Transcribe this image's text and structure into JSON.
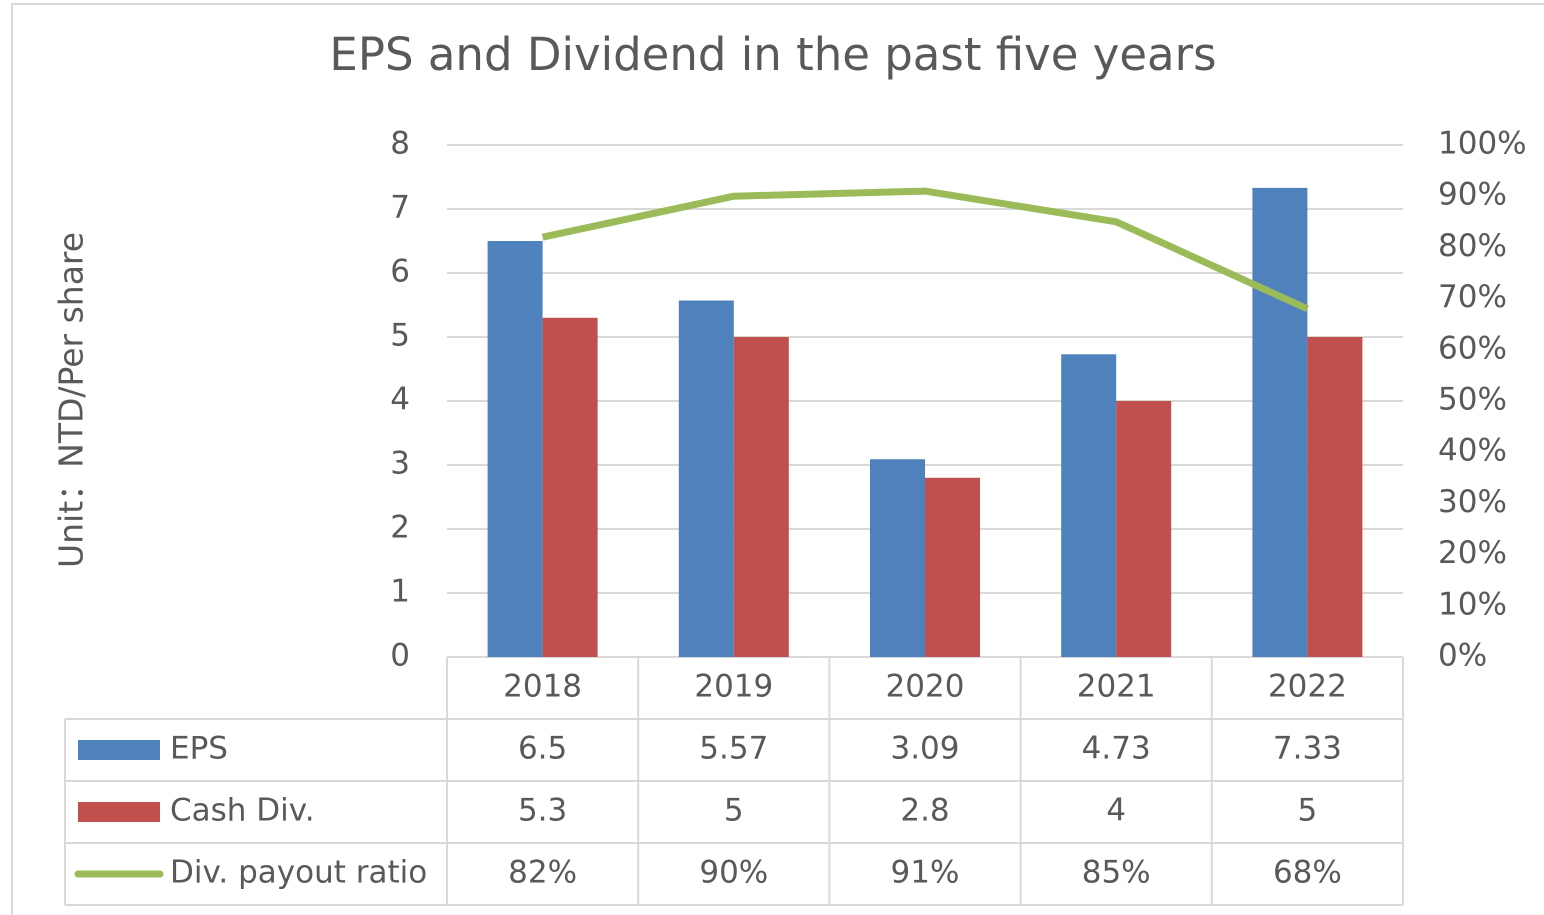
{
  "chart_data": {
    "type": "bar",
    "title": "EPS and Dividend in the past five years",
    "y_label": "Unit：NTD/Per share",
    "categories": [
      "2018",
      "2019",
      "2020",
      "2021",
      "2022"
    ],
    "series": [
      {
        "name": "EPS",
        "color": "#4f81bd",
        "type": "bar",
        "values": [
          6.5,
          5.57,
          3.09,
          4.73,
          7.33
        ]
      },
      {
        "name": "Cash Div.",
        "color": "#c0504d",
        "type": "bar",
        "values": [
          5.3,
          5,
          2.8,
          4,
          5
        ]
      },
      {
        "name": "Div. payout ratio",
        "color": "#9bbb59",
        "type": "line",
        "axis": "y2",
        "values": [
          82,
          90,
          91,
          85,
          68
        ],
        "value_labels": [
          "82%",
          "90%",
          "91%",
          "85%",
          "68%"
        ]
      }
    ],
    "ylim": [
      0,
      8
    ],
    "yticks": [
      0,
      1,
      2,
      3,
      4,
      5,
      6,
      7,
      8
    ],
    "y2lim": [
      0,
      100
    ],
    "y2ticks": [
      {
        "value": 0,
        "label": "0%"
      },
      {
        "value": 10,
        "label": "10%"
      },
      {
        "value": 20,
        "label": "20%"
      },
      {
        "value": 30,
        "label": "30%"
      },
      {
        "value": 40,
        "label": "40%"
      },
      {
        "value": 50,
        "label": "50%"
      },
      {
        "value": 60,
        "label": "60%"
      },
      {
        "value": 70,
        "label": "70%"
      },
      {
        "value": 80,
        "label": "80%"
      },
      {
        "value": 90,
        "label": "90%"
      },
      {
        "value": 100,
        "label": "100%"
      }
    ],
    "grid": true,
    "data_table": true
  }
}
